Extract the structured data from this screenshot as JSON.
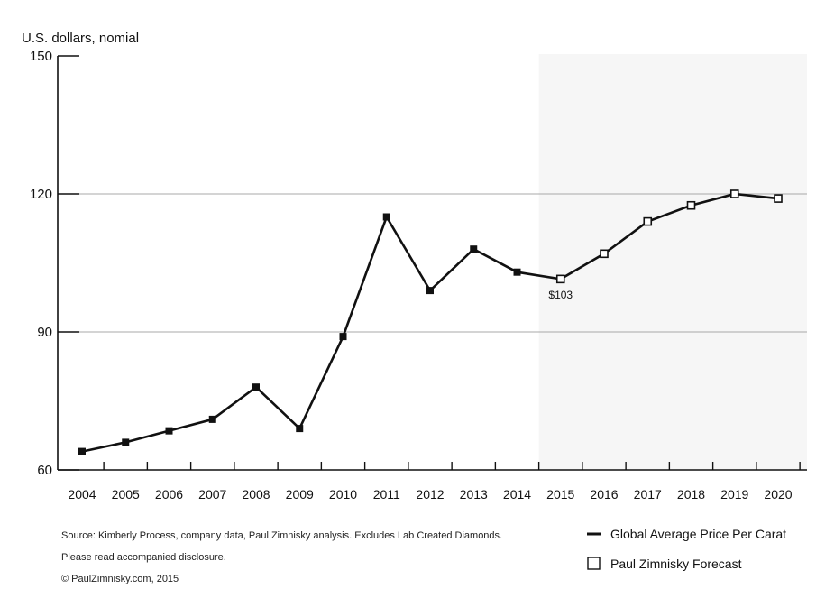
{
  "chart_data": {
    "type": "line",
    "ylabel": "U.S. dollars, nomial",
    "ylim": [
      60,
      150
    ],
    "yticks": [
      60,
      90,
      120,
      150
    ],
    "gridlines_y": [
      90,
      120
    ],
    "categories": [
      "2004",
      "2005",
      "2006",
      "2007",
      "2008",
      "2009",
      "2010",
      "2011",
      "2012",
      "2013",
      "2014",
      "2015",
      "2016",
      "2017",
      "2018",
      "2019",
      "2020"
    ],
    "series": [
      {
        "name": "Global Average Price Per Carat",
        "marker": "filled-square",
        "values": [
          64,
          66,
          68.5,
          71,
          78,
          69,
          89,
          115,
          99,
          108,
          103,
          101.5,
          null,
          null,
          null,
          null,
          null
        ]
      },
      {
        "name": "Paul Zimnisky Forecast",
        "marker": "open-square",
        "values": [
          null,
          null,
          null,
          null,
          null,
          null,
          null,
          null,
          null,
          null,
          null,
          101.5,
          107,
          114,
          117.5,
          120,
          119
        ]
      }
    ],
    "annotations": [
      {
        "text": "$103",
        "category": "2015"
      }
    ],
    "forecast_shading_from": "2015",
    "legend_position": "bottom-right",
    "footnotes": [
      "Source: Kimberly Process, company data, Paul Zimnisky analysis.  Excludes Lab Created Diamonds.",
      "Please read accompanied disclosure.",
      "© PaulZimnisky.com, 2015"
    ],
    "colors": {
      "line": "#111111",
      "grid": "#a8a8a8",
      "axis": "#111111",
      "forecast_band": "#f6f6f6"
    }
  }
}
